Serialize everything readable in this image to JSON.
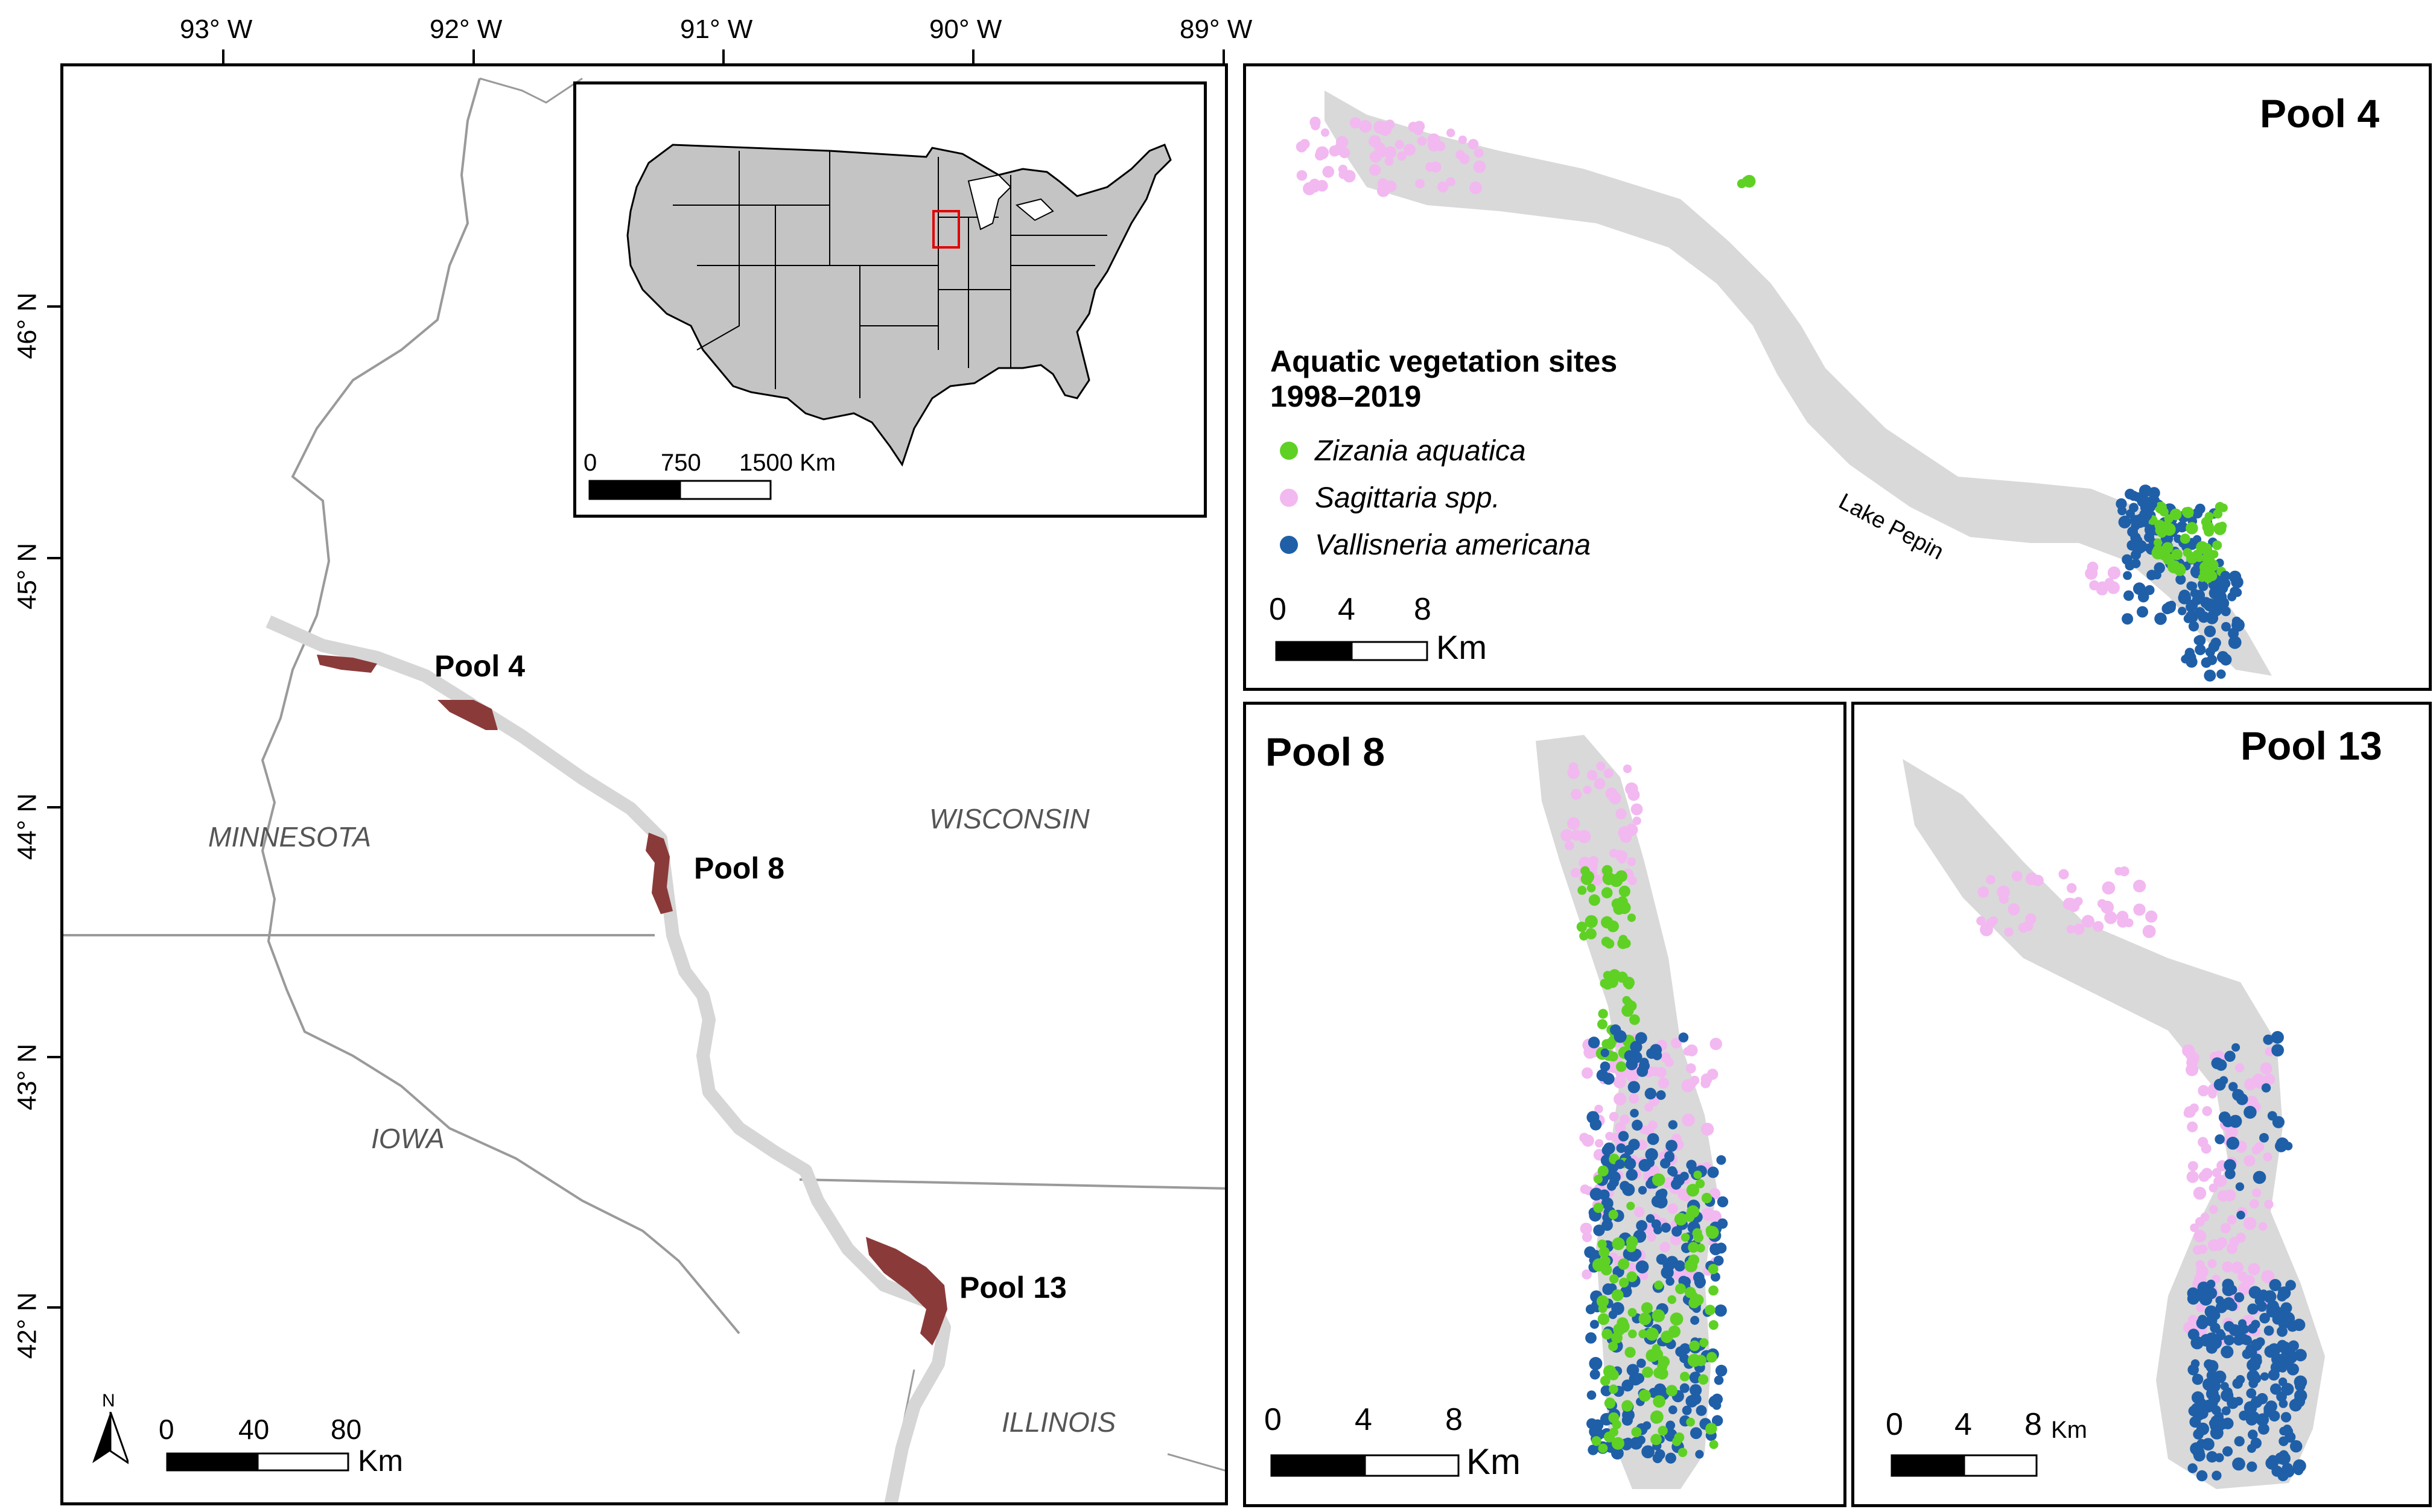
{
  "graticule": {
    "longitudes": [
      "93° W",
      "92° W",
      "91° W",
      "90° W",
      "89° W"
    ],
    "latitudes": [
      "46° N",
      "45° N",
      "44° N",
      "43° N",
      "42° N"
    ]
  },
  "main_map": {
    "states": [
      "MINNESOTA",
      "WISCONSIN",
      "IOWA",
      "ILLINOIS"
    ],
    "pools": [
      "Pool 4",
      "Pool 8",
      "Pool 13"
    ],
    "north_label": "N",
    "scale": {
      "ticks": [
        "0",
        "40",
        "80"
      ],
      "unit": "Km"
    },
    "pool_color": "#8b3a3a",
    "river_color": "#d6d6d6",
    "boundary_color": "#9a9a9a"
  },
  "inset": {
    "scale": {
      "ticks": [
        "0",
        "750",
        "1500 Km"
      ]
    },
    "land_color": "#c4c4c4",
    "highlight_color": "#e00000"
  },
  "pool4_panel": {
    "title": "Pool 4",
    "place_label": "Lake Pepin",
    "legend": {
      "title_line1": "Aquatic vegetation sites",
      "title_line2": "1998–2019",
      "items": [
        {
          "name": "Zizania aquatica",
          "color": "#5fd125"
        },
        {
          "name": "Sagittaria spp.",
          "color": "#f2b8f0"
        },
        {
          "name": "Vallisneria americana",
          "color": "#1f5fa8"
        }
      ]
    },
    "scale": {
      "ticks": [
        "0",
        "4",
        "8"
      ],
      "unit": "Km"
    }
  },
  "pool8_panel": {
    "title": "Pool 8",
    "scale": {
      "ticks": [
        "0",
        "4",
        "8"
      ],
      "unit": "Km"
    }
  },
  "pool13_panel": {
    "title": "Pool 13",
    "scale": {
      "ticks": [
        "0",
        "4",
        "8"
      ],
      "unit": "Km"
    }
  }
}
